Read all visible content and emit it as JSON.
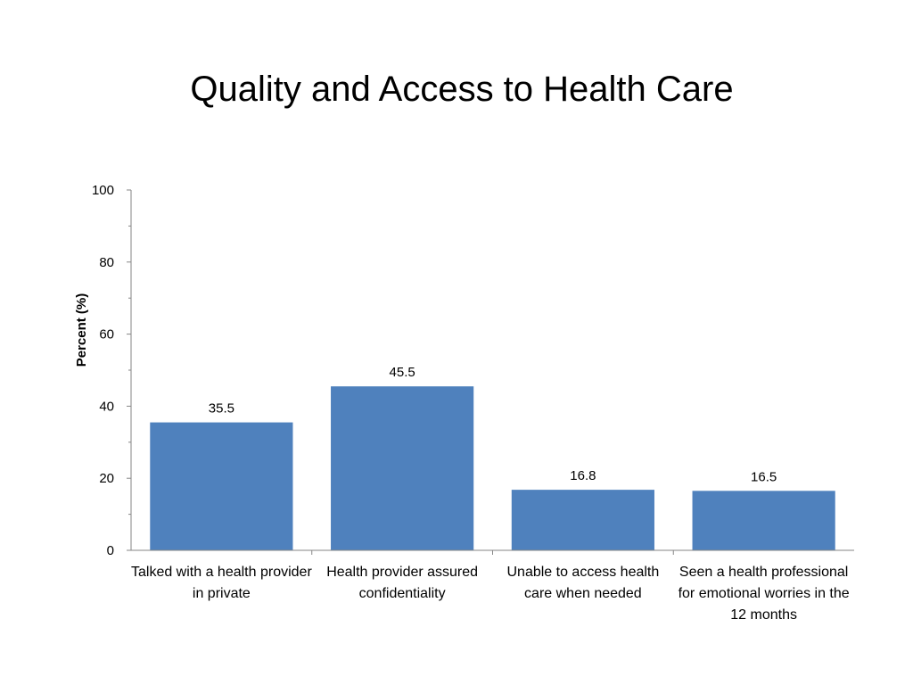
{
  "chart_data": {
    "type": "bar",
    "title": "Quality and Access to Health Care",
    "ylabel": "Percent (%)",
    "xlabel": "",
    "categories": [
      "Talked with a health provider in private",
      "Health provider assured confidentiality",
      "Unable to access health care when needed",
      "Seen a health professional for emotional worries in the 12 months"
    ],
    "values": [
      35.5,
      45.5,
      16.8,
      16.5
    ],
    "data_labels": [
      "35.5",
      "45.5",
      "16.8",
      "16.5"
    ],
    "ylim": [
      0,
      100
    ],
    "yticks": [
      0,
      20,
      40,
      60,
      80,
      100
    ],
    "ytick_labels": [
      "0",
      "20",
      "40",
      "60",
      "80",
      "100"
    ],
    "grid": false,
    "legend": "none",
    "bar_color": "#4F81BD"
  }
}
